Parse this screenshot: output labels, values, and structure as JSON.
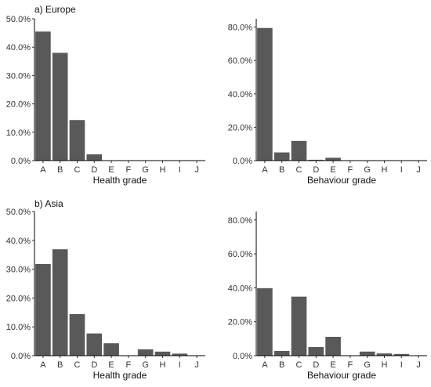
{
  "chart_data": [
    {
      "type": "bar",
      "title": "a) Europe",
      "xlabel": "Health grade",
      "ylabel": "",
      "categories": [
        "A",
        "B",
        "C",
        "D",
        "E",
        "F",
        "G",
        "H",
        "I",
        "J"
      ],
      "values": [
        45.5,
        38.0,
        14.3,
        2.2,
        0,
        0,
        0,
        0,
        0,
        0
      ],
      "ylim": [
        0,
        50
      ],
      "yticks": [
        0,
        10,
        20,
        30,
        40,
        50
      ],
      "ytick_labels": [
        "0.0%",
        "10.0%",
        "20.0%",
        "30.0%",
        "40.0%",
        "50.0%"
      ],
      "bar_color": "#595959"
    },
    {
      "type": "bar",
      "title": "",
      "xlabel": "Behaviour grade",
      "ylabel": "",
      "categories": [
        "A",
        "B",
        "C",
        "D",
        "E",
        "F",
        "G",
        "H",
        "I",
        "J"
      ],
      "values": [
        79.5,
        4.9,
        11.8,
        0.5,
        1.7,
        0,
        0,
        0,
        0,
        0
      ],
      "ylim": [
        0,
        85
      ],
      "yticks": [
        0,
        20,
        40,
        60,
        80
      ],
      "ytick_labels": [
        "0.0%",
        "20.0%",
        "40.0%",
        "60.0%",
        "80.0%"
      ],
      "bar_color": "#595959"
    },
    {
      "type": "bar",
      "title": "b) Asia",
      "xlabel": "Health grade",
      "ylabel": "",
      "categories": [
        "A",
        "B",
        "C",
        "D",
        "E",
        "F",
        "G",
        "H",
        "I",
        "J"
      ],
      "values": [
        31.8,
        36.9,
        14.4,
        7.7,
        4.3,
        0,
        2.2,
        1.4,
        0.7,
        0
      ],
      "ylim": [
        0,
        50
      ],
      "yticks": [
        0,
        10,
        20,
        30,
        40,
        50
      ],
      "ytick_labels": [
        "0.0%",
        "10.0%",
        "20.0%",
        "30.0%",
        "40.0%",
        "50.0%"
      ],
      "bar_color": "#595959"
    },
    {
      "type": "bar",
      "title": "",
      "xlabel": "Behaviour grade",
      "ylabel": "",
      "categories": [
        "A",
        "B",
        "C",
        "D",
        "E",
        "F",
        "G",
        "H",
        "I",
        "J"
      ],
      "values": [
        39.8,
        2.8,
        34.8,
        5.1,
        11.1,
        0,
        2.4,
        1.3,
        1.0,
        0
      ],
      "ylim": [
        0,
        85
      ],
      "yticks": [
        0,
        20,
        40,
        60,
        80
      ],
      "ytick_labels": [
        "0.0%",
        "20.0%",
        "40.0%",
        "60.0%",
        "80.0%"
      ],
      "bar_color": "#595959"
    }
  ]
}
